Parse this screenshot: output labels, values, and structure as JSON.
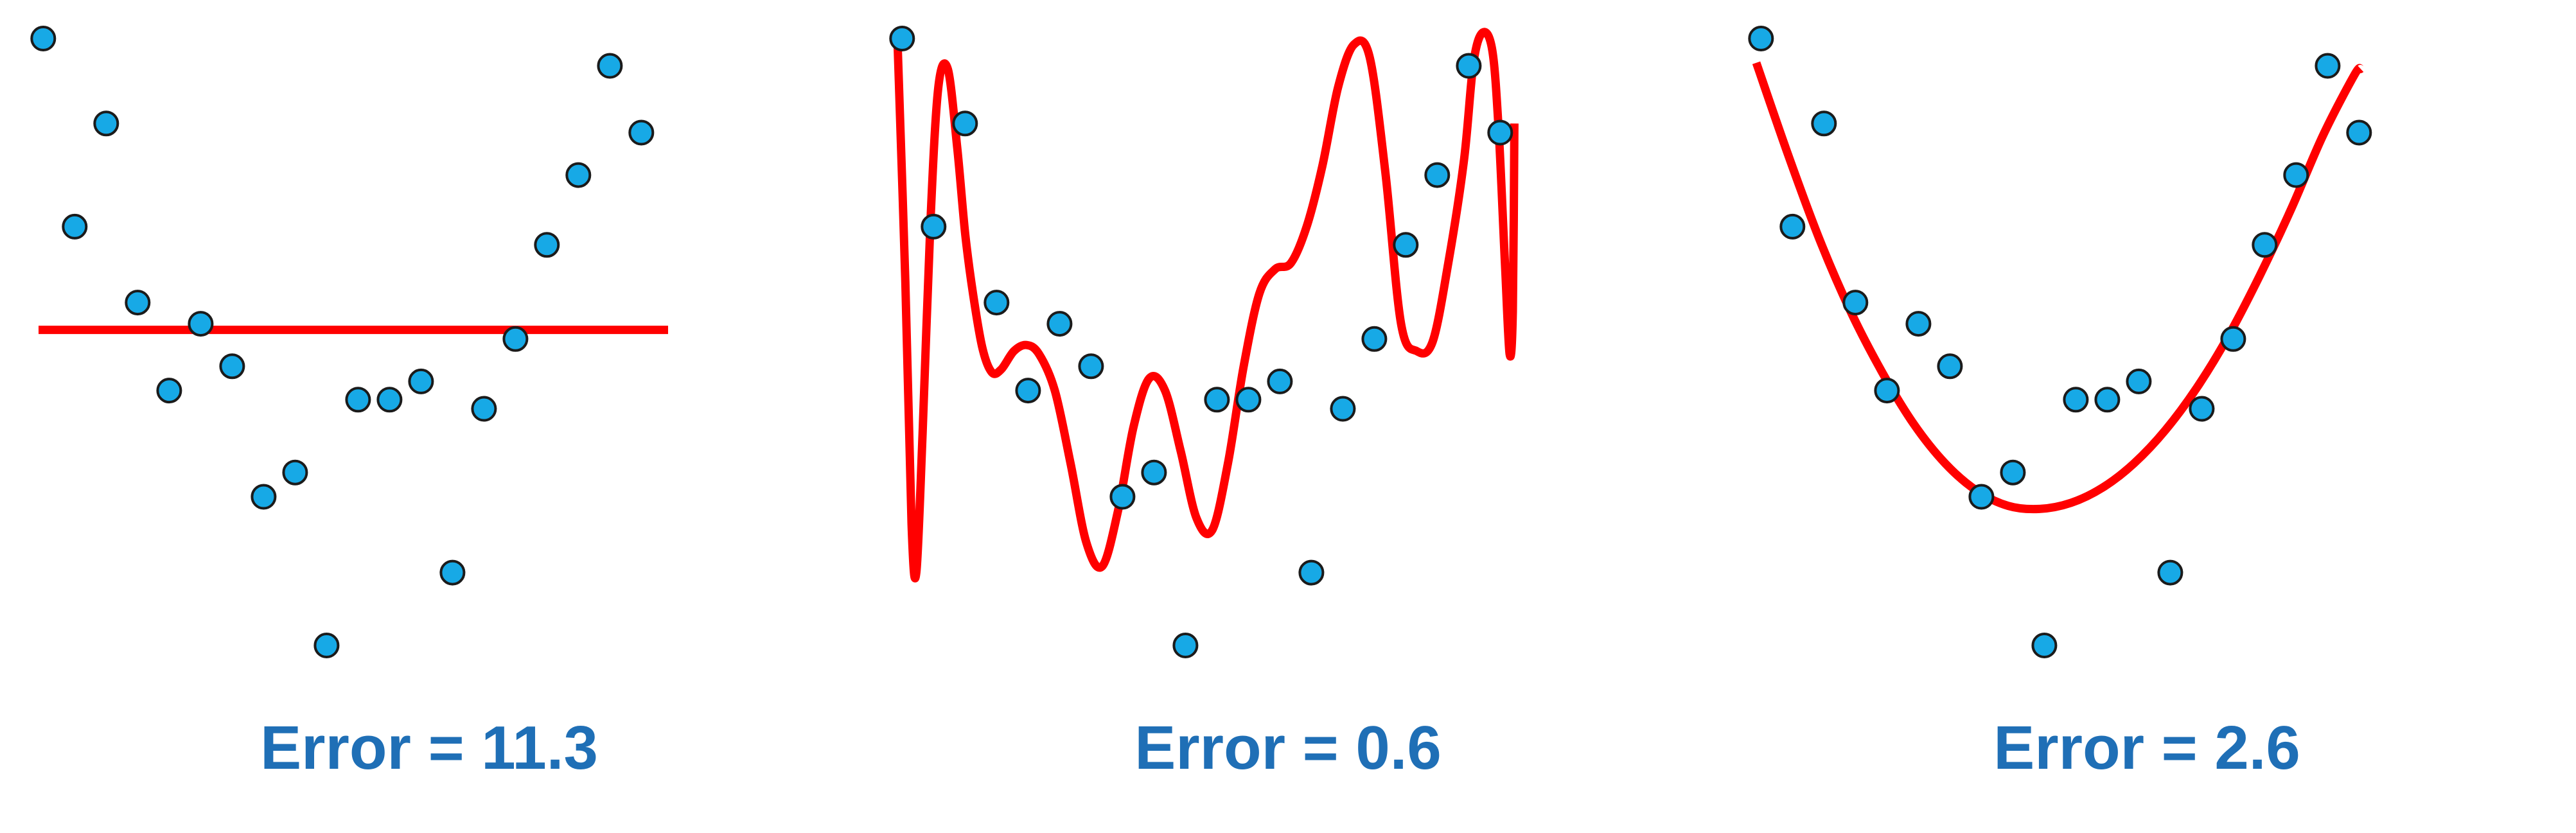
{
  "colors": {
    "point_fill": "#17a9e6",
    "point_stroke": "#1b1b1b",
    "fit_line": "#ff0000",
    "caption": "#1f6fb6"
  },
  "chart_data": [
    {
      "type": "scatter",
      "title": "",
      "xlabel": "",
      "ylabel": "",
      "caption": "Error = 11.3",
      "fit": "constant",
      "xlim": [
        0,
        20
      ],
      "ylim": [
        0,
        10
      ],
      "grid": false,
      "points": [
        {
          "x": 0.15,
          "y": 10.0
        },
        {
          "x": 1.15,
          "y": 6.9
        },
        {
          "x": 2.15,
          "y": 8.6
        },
        {
          "x": 3.15,
          "y": 5.65
        },
        {
          "x": 4.15,
          "y": 4.2
        },
        {
          "x": 5.15,
          "y": 5.3
        },
        {
          "x": 6.15,
          "y": 4.6
        },
        {
          "x": 7.15,
          "y": 2.45
        },
        {
          "x": 8.15,
          "y": 2.85
        },
        {
          "x": 9.15,
          "y": 0.0
        },
        {
          "x": 10.15,
          "y": 4.05
        },
        {
          "x": 11.15,
          "y": 4.05
        },
        {
          "x": 12.15,
          "y": 4.35
        },
        {
          "x": 13.15,
          "y": 1.2
        },
        {
          "x": 14.15,
          "y": 3.9
        },
        {
          "x": 15.15,
          "y": 5.05
        },
        {
          "x": 16.15,
          "y": 6.6
        },
        {
          "x": 17.15,
          "y": 7.75
        },
        {
          "x": 18.15,
          "y": 9.55
        },
        {
          "x": 19.15,
          "y": 8.45
        }
      ],
      "fit_curve": {
        "x": [
          0,
          20
        ],
        "y": [
          5.2,
          5.2
        ]
      }
    },
    {
      "type": "scatter",
      "title": "",
      "xlabel": "",
      "ylabel": "",
      "caption": "Error = 0.6",
      "fit": "high-degree polynomial",
      "xlim": [
        0,
        20
      ],
      "ylim": [
        0,
        10
      ],
      "grid": false,
      "points": [
        {
          "x": 0.15,
          "y": 10.0
        },
        {
          "x": 1.15,
          "y": 6.9
        },
        {
          "x": 2.15,
          "y": 8.6
        },
        {
          "x": 3.15,
          "y": 5.65
        },
        {
          "x": 4.15,
          "y": 4.2
        },
        {
          "x": 5.15,
          "y": 5.3
        },
        {
          "x": 6.15,
          "y": 4.6
        },
        {
          "x": 7.15,
          "y": 2.45
        },
        {
          "x": 8.15,
          "y": 2.85
        },
        {
          "x": 9.15,
          "y": 0.0
        },
        {
          "x": 10.15,
          "y": 4.05
        },
        {
          "x": 11.15,
          "y": 4.05
        },
        {
          "x": 12.15,
          "y": 4.35
        },
        {
          "x": 13.15,
          "y": 1.2
        },
        {
          "x": 14.15,
          "y": 3.9
        },
        {
          "x": 15.15,
          "y": 5.05
        },
        {
          "x": 16.15,
          "y": 6.6
        },
        {
          "x": 17.15,
          "y": 7.75
        },
        {
          "x": 18.15,
          "y": 9.55
        },
        {
          "x": 19.15,
          "y": 8.45
        }
      ],
      "fit_curve": {
        "x": [
          0.0,
          0.25,
          0.45,
          0.6,
          0.8,
          1.05,
          1.3,
          1.6,
          1.9,
          2.15,
          2.4,
          2.7,
          3.0,
          3.3,
          3.7,
          4.1,
          4.5,
          5.0,
          5.5,
          6.0,
          6.5,
          7.0,
          7.5,
          8.0,
          8.5,
          9.0,
          9.5,
          10.0,
          10.5,
          11.0,
          11.5,
          12.0,
          12.5,
          13.0,
          13.5,
          14.0,
          14.5,
          15.0,
          15.5,
          16.0,
          16.5,
          17.0,
          17.5,
          18.0,
          18.3,
          18.6,
          18.9,
          19.1,
          19.3,
          19.45,
          19.55,
          19.6
        ],
        "y": [
          10.0,
          6.0,
          2.0,
          1.2,
          3.5,
          7.0,
          9.2,
          9.5,
          8.2,
          6.8,
          5.8,
          4.9,
          4.5,
          4.55,
          4.85,
          4.95,
          4.8,
          4.2,
          3.0,
          1.7,
          1.3,
          2.2,
          3.6,
          4.4,
          4.2,
          3.2,
          2.1,
          1.9,
          3.0,
          4.6,
          5.8,
          6.2,
          6.3,
          6.9,
          7.9,
          9.2,
          9.9,
          9.7,
          7.8,
          5.3,
          4.85,
          5.0,
          6.3,
          8.0,
          9.6,
          10.1,
          9.8,
          8.5,
          6.3,
          4.8,
          5.5,
          8.6
        ]
      }
    },
    {
      "type": "scatter",
      "title": "",
      "xlabel": "",
      "ylabel": "",
      "caption": "Error = 2.6",
      "fit": "quadratic",
      "xlim": [
        0,
        20
      ],
      "ylim": [
        0,
        10
      ],
      "grid": false,
      "points": [
        {
          "x": 0.15,
          "y": 10.0
        },
        {
          "x": 1.15,
          "y": 6.9
        },
        {
          "x": 2.15,
          "y": 8.6
        },
        {
          "x": 3.15,
          "y": 5.65
        },
        {
          "x": 4.15,
          "y": 4.2
        },
        {
          "x": 5.15,
          "y": 5.3
        },
        {
          "x": 6.15,
          "y": 4.6
        },
        {
          "x": 7.15,
          "y": 2.45
        },
        {
          "x": 8.15,
          "y": 2.85
        },
        {
          "x": 9.15,
          "y": 0.0
        },
        {
          "x": 10.15,
          "y": 4.05
        },
        {
          "x": 11.15,
          "y": 4.05
        },
        {
          "x": 12.15,
          "y": 4.35
        },
        {
          "x": 13.15,
          "y": 1.2
        },
        {
          "x": 14.15,
          "y": 3.9
        },
        {
          "x": 15.15,
          "y": 5.05
        },
        {
          "x": 16.15,
          "y": 6.6
        },
        {
          "x": 17.15,
          "y": 7.75
        },
        {
          "x": 18.15,
          "y": 9.55
        },
        {
          "x": 19.15,
          "y": 8.45
        }
      ],
      "fit_curve": {
        "x": [
          0.0,
          1,
          2,
          3,
          4,
          5,
          6,
          7,
          8,
          9,
          10,
          11,
          12,
          13,
          14,
          15,
          16,
          17,
          18,
          19,
          19.2
        ],
        "y": [
          9.6,
          8.1,
          6.7,
          5.5,
          4.5,
          3.65,
          3.0,
          2.55,
          2.3,
          2.25,
          2.35,
          2.6,
          3.0,
          3.55,
          4.25,
          5.1,
          6.1,
          7.2,
          8.4,
          9.4,
          9.5
        ]
      }
    }
  ]
}
